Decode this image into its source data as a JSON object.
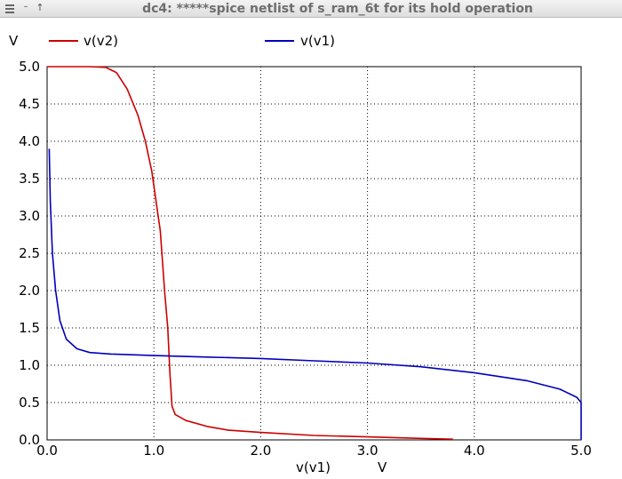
{
  "window": {
    "title": "dc4: *****spice netlist of s_ram_6t for its hold operation",
    "minimize_glyph": "–",
    "up_glyph": "↑",
    "icons": [
      "menu-icon",
      "minimize-icon",
      "up-arrow-icon"
    ]
  },
  "chart_data": {
    "type": "line",
    "ylabel": "V",
    "xlabel_name": "v(v1)",
    "xlabel_unit": "V",
    "xlim": [
      0,
      5
    ],
    "ylim": [
      0,
      5
    ],
    "x_ticks": [
      "0.0",
      "1.0",
      "2.0",
      "3.0",
      "4.0",
      "5.0"
    ],
    "y_ticks": [
      "0.0",
      "0.5",
      "1.0",
      "1.5",
      "2.0",
      "2.5",
      "3.0",
      "3.5",
      "4.0",
      "4.5",
      "5.0"
    ],
    "grid": true,
    "legend_position": "top",
    "series": [
      {
        "name": "v(v2)",
        "color": "#cc0000",
        "points": [
          [
            0.0,
            5.0
          ],
          [
            0.4,
            5.0
          ],
          [
            0.55,
            4.99
          ],
          [
            0.65,
            4.92
          ],
          [
            0.75,
            4.7
          ],
          [
            0.85,
            4.35
          ],
          [
            0.92,
            4.0
          ],
          [
            0.98,
            3.6
          ],
          [
            1.02,
            3.2
          ],
          [
            1.06,
            2.8
          ],
          [
            1.1,
            2.0
          ],
          [
            1.13,
            1.5
          ],
          [
            1.15,
            0.9
          ],
          [
            1.17,
            0.45
          ],
          [
            1.2,
            0.34
          ],
          [
            1.3,
            0.26
          ],
          [
            1.5,
            0.18
          ],
          [
            1.7,
            0.13
          ],
          [
            2.0,
            0.1
          ],
          [
            2.5,
            0.06
          ],
          [
            3.0,
            0.04
          ],
          [
            3.5,
            0.02
          ],
          [
            3.8,
            0.01
          ]
        ]
      },
      {
        "name": "v(v1)",
        "color": "#0000bb",
        "points": [
          [
            0.02,
            3.9
          ],
          [
            0.03,
            3.2
          ],
          [
            0.05,
            2.5
          ],
          [
            0.08,
            2.0
          ],
          [
            0.12,
            1.6
          ],
          [
            0.18,
            1.35
          ],
          [
            0.28,
            1.22
          ],
          [
            0.4,
            1.17
          ],
          [
            0.6,
            1.15
          ],
          [
            1.0,
            1.13
          ],
          [
            1.5,
            1.11
          ],
          [
            2.0,
            1.09
          ],
          [
            2.5,
            1.06
          ],
          [
            3.0,
            1.03
          ],
          [
            3.5,
            0.98
          ],
          [
            4.0,
            0.9
          ],
          [
            4.5,
            0.79
          ],
          [
            4.8,
            0.68
          ],
          [
            4.96,
            0.57
          ],
          [
            5.0,
            0.5
          ],
          [
            5.0,
            0.0
          ]
        ]
      }
    ]
  }
}
